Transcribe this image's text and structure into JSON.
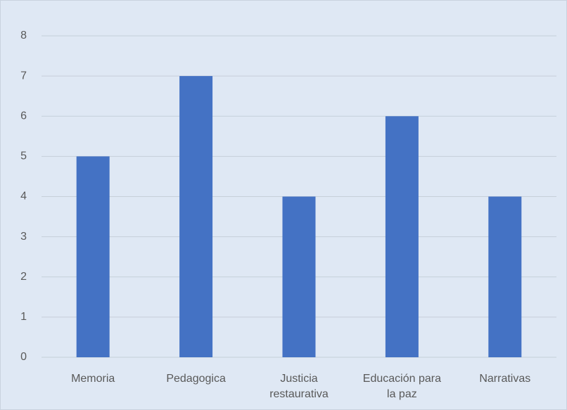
{
  "chart_data": {
    "type": "bar",
    "categories": [
      "Memoria",
      "Pedagogica",
      "Justicia restaurativa",
      "Educación para la paz",
      "Narrativas"
    ],
    "values": [
      5,
      7,
      4,
      6,
      4
    ],
    "color": "#4472c4",
    "ylim": [
      0,
      8
    ],
    "yticks": [
      0,
      1,
      2,
      3,
      4,
      5,
      6,
      7,
      8
    ],
    "grid": true
  }
}
